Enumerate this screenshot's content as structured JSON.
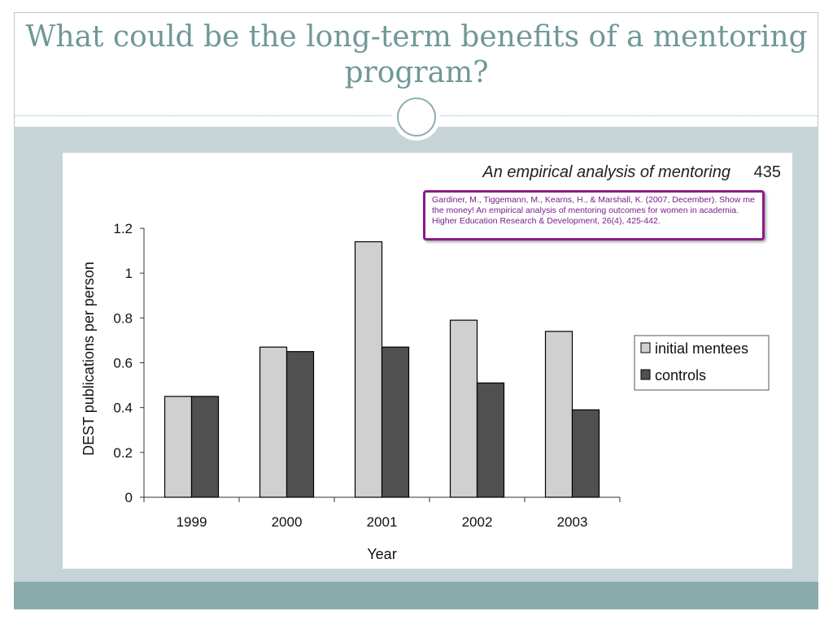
{
  "slide": {
    "title": "What could be the long-term benefits of a mentoring program?"
  },
  "figure": {
    "header_title": "An empirical analysis of mentoring",
    "page_number": "435",
    "citation": "Gardiner, M., Tiggemann, M., Kearns, H., & Marshall, K. (2007, December). Show me the money! An empirical analysis of mentoring outcomes   for women in academia. Higher Education Research & Development, 26(4), 425-442."
  },
  "colors": {
    "title": "#6f9899",
    "band": "#c6d3d7",
    "footer": "#8aabab",
    "citation_border": "#8b1a8c",
    "initial_mentees": "#d0d0d0",
    "controls": "#505050"
  },
  "chart_data": {
    "type": "bar",
    "categories": [
      "1999",
      "2000",
      "2001",
      "2002",
      "2003"
    ],
    "series": [
      {
        "name": "initial mentees",
        "values": [
          0.45,
          0.67,
          1.14,
          0.79,
          0.74
        ],
        "color": "#d0d0d0"
      },
      {
        "name": "controls",
        "values": [
          0.45,
          0.65,
          0.67,
          0.51,
          0.39
        ],
        "color": "#505050"
      }
    ],
    "title": "",
    "xlabel": "Year",
    "ylabel": "DEST publications per person",
    "ylim": [
      0,
      1.2
    ],
    "yticks": [
      0,
      0.2,
      0.4,
      0.6,
      0.8,
      1,
      1.2
    ],
    "ytick_labels": [
      "0",
      "0.2",
      "0.4",
      "0.6",
      "0.8",
      "1",
      "1.2"
    ],
    "grid": false,
    "legend_position": "right"
  }
}
